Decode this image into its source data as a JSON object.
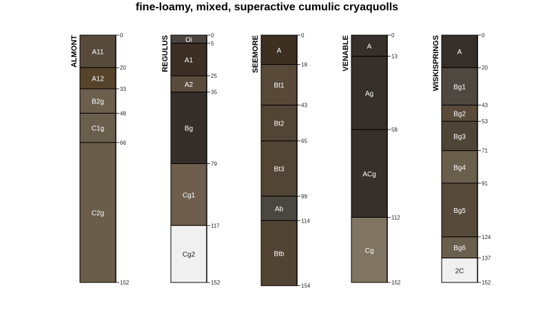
{
  "title": "fine-loamy, mixed, superactive cumulic cryaquolls",
  "profiles": [
    {
      "name": "ALMONT",
      "horizons": [
        {
          "name": "A11",
          "top": 0,
          "bottom": 20,
          "color": "#574a3c"
        },
        {
          "name": "A12",
          "top": 20,
          "bottom": 33,
          "color": "#55432c"
        },
        {
          "name": "B2g",
          "top": 33,
          "bottom": 48,
          "color": "#6c5f4d"
        },
        {
          "name": "C1g",
          "top": 48,
          "bottom": 66,
          "color": "#6a5e4c"
        },
        {
          "name": "C2g",
          "top": 66,
          "bottom": 152,
          "color": "#6a5d4a"
        }
      ]
    },
    {
      "name": "REGULUS",
      "horizons": [
        {
          "name": "Oi",
          "top": 0,
          "bottom": 5,
          "color": "#4a4440"
        },
        {
          "name": "A1",
          "top": 5,
          "bottom": 25,
          "color": "#3c2f25"
        },
        {
          "name": "A2",
          "top": 25,
          "bottom": 35,
          "color": "#5a4b3d"
        },
        {
          "name": "Bg",
          "top": 35,
          "bottom": 79,
          "color": "#352e2a"
        },
        {
          "name": "Cg1",
          "top": 79,
          "bottom": 117,
          "color": "#6f5e4e"
        },
        {
          "name": "Cg2",
          "top": 117,
          "bottom": 152,
          "color": "#f0f0f0"
        }
      ]
    },
    {
      "name": "SEEMORE",
      "horizons": [
        {
          "name": "A",
          "top": 0,
          "bottom": 18,
          "color": "#3d2f22"
        },
        {
          "name": "Bt1",
          "top": 18,
          "bottom": 43,
          "color": "#574838"
        },
        {
          "name": "Bt2",
          "top": 43,
          "bottom": 65,
          "color": "#524535"
        },
        {
          "name": "Bt3",
          "top": 65,
          "bottom": 99,
          "color": "#524535"
        },
        {
          "name": "Ab",
          "top": 99,
          "bottom": 114,
          "color": "#4a4640"
        },
        {
          "name": "Btb",
          "top": 114,
          "bottom": 154,
          "color": "#524434"
        }
      ]
    },
    {
      "name": "VENABLE",
      "horizons": [
        {
          "name": "A",
          "top": 0,
          "bottom": 13,
          "color": "#353029"
        },
        {
          "name": "Ag",
          "top": 13,
          "bottom": 58,
          "color": "#35302b"
        },
        {
          "name": "ACg",
          "top": 58,
          "bottom": 112,
          "color": "#35302b"
        },
        {
          "name": "Cg",
          "top": 112,
          "bottom": 152,
          "color": "#807562"
        }
      ]
    },
    {
      "name": "WISKISPRINGS",
      "horizons": [
        {
          "name": "A",
          "top": 0,
          "bottom": 20,
          "color": "#35302b"
        },
        {
          "name": "Bg1",
          "top": 20,
          "bottom": 43,
          "color": "#4e4840"
        },
        {
          "name": "Bg2",
          "top": 43,
          "bottom": 53,
          "color": "#5a4a3a"
        },
        {
          "name": "Bg3",
          "top": 53,
          "bottom": 71,
          "color": "#4e4536"
        },
        {
          "name": "Bg4",
          "top": 71,
          "bottom": 91,
          "color": "#6a5e4c"
        },
        {
          "name": "Bg5",
          "top": 91,
          "bottom": 124,
          "color": "#574a3a"
        },
        {
          "name": "Bg6",
          "top": 124,
          "bottom": 137,
          "color": "#6a5e4c"
        },
        {
          "name": "2C",
          "top": 137,
          "bottom": 152,
          "color": "#f0f0f0"
        }
      ]
    }
  ]
}
